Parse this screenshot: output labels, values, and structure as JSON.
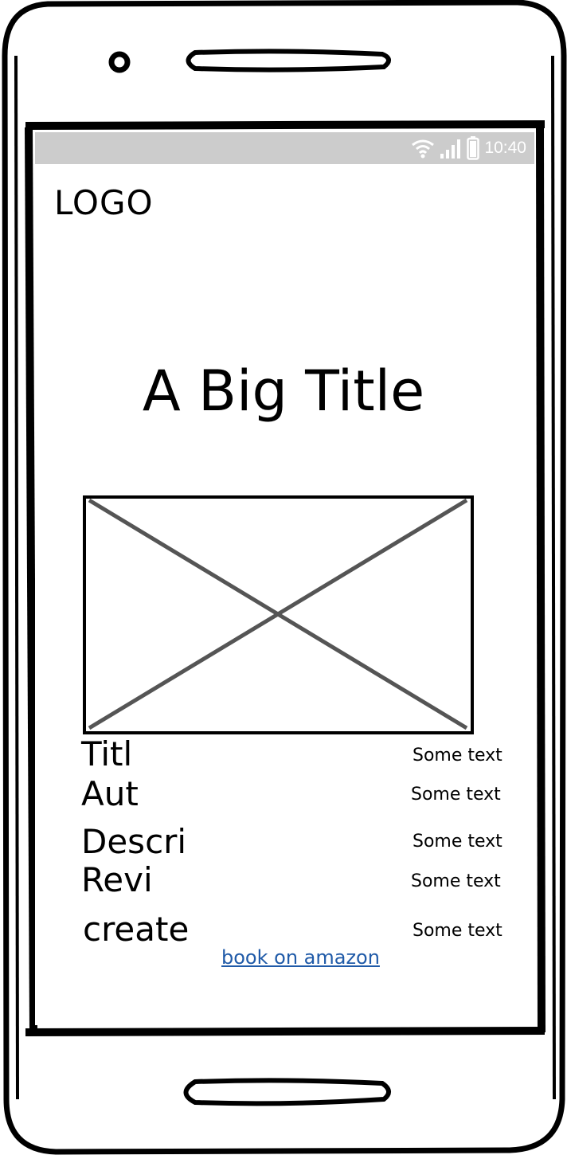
{
  "status_bar": {
    "time": "10:40",
    "wifi_icon": "wifi-icon",
    "signal_icon": "signal-icon",
    "battery_icon": "battery-icon"
  },
  "header": {
    "logo": "LOGO"
  },
  "main": {
    "title": "A Big Title",
    "image_icon": "image-placeholder-icon",
    "fields": [
      {
        "label": "Titl",
        "value": "Some text"
      },
      {
        "label": "Aut",
        "value": "Some text"
      },
      {
        "label": "Descri",
        "value": "Some text"
      },
      {
        "label": "Revi",
        "value": "Some text"
      },
      {
        "label": "create",
        "value": "Some text"
      }
    ],
    "link": "book on amazon"
  },
  "colors": {
    "status_bar": "#cccccc",
    "link": "#1f5aa8",
    "placeholder_cross": "#555555"
  }
}
